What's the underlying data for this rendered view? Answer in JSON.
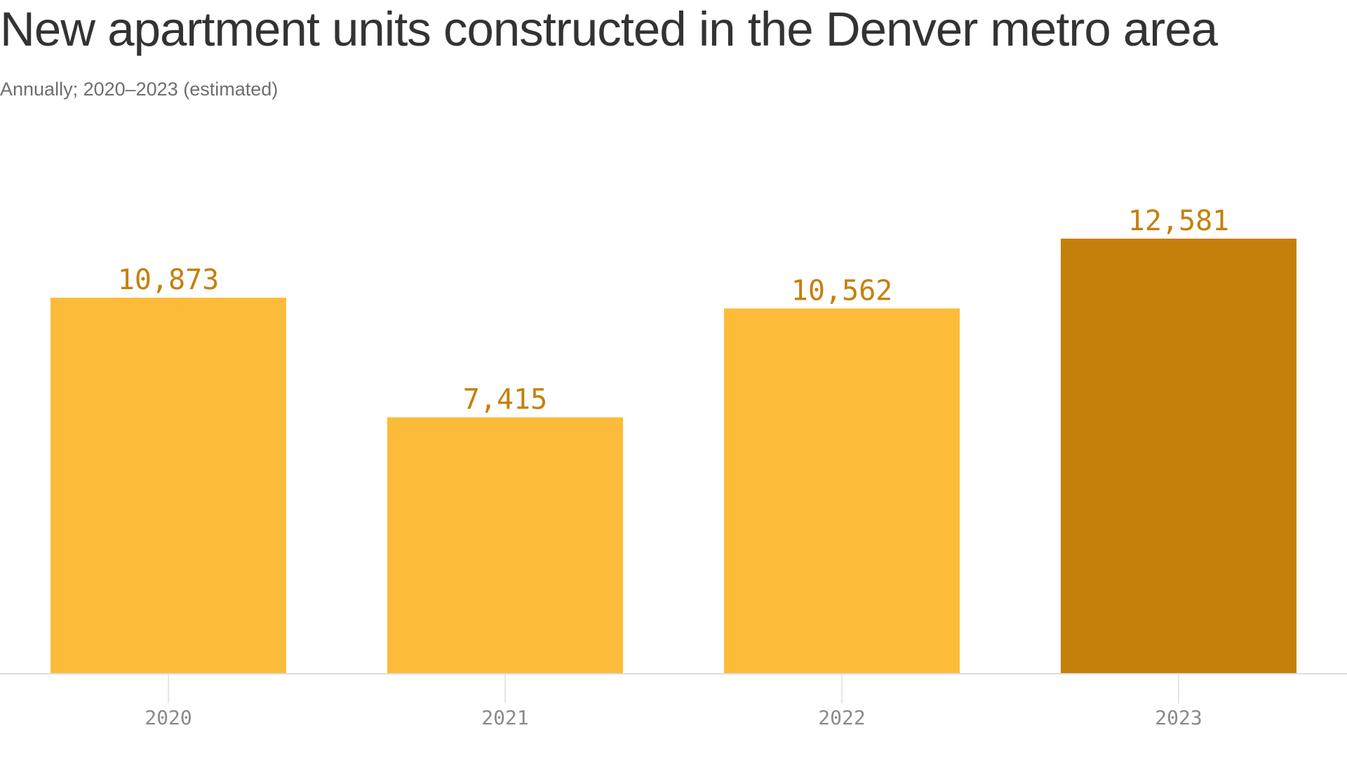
{
  "chart_data": {
    "type": "bar",
    "title": "New apartment units constructed in the Denver metro area",
    "subtitle": "Annually; 2020–2023 (estimated)",
    "categories": [
      "2020",
      "2021",
      "2022",
      "2023"
    ],
    "values": [
      10873,
      7415,
      10562,
      12581
    ],
    "value_labels": [
      "10,873",
      "7,415",
      "10,562",
      "12,581"
    ],
    "highlight_index": 3,
    "ylim": [
      0,
      12581
    ],
    "grid": false,
    "legend": "none",
    "colors": {
      "bar": "#FDBB3A",
      "highlight": "#C4800B",
      "value_label": "#C4800B",
      "axis": "#dddddd",
      "tick_label": "#8a8a8a"
    }
  }
}
